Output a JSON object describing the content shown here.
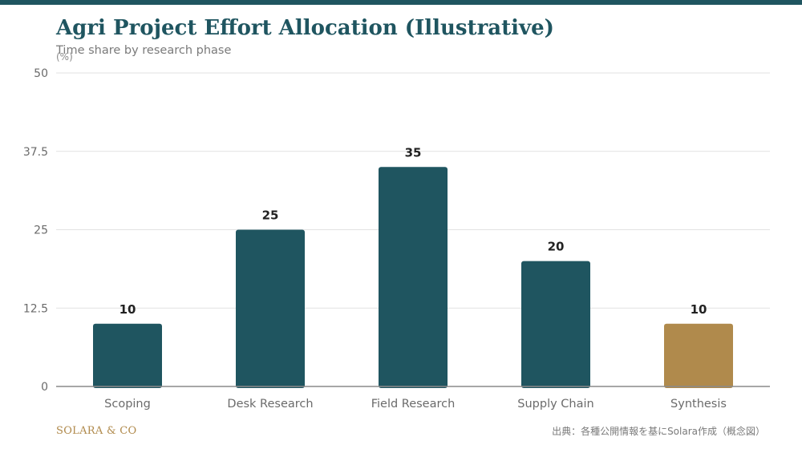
{
  "colors": {
    "primary": "#1f5560",
    "accent": "#b08a4c",
    "grid": "#e2e2e2",
    "axis": "#8a8a8a",
    "tick_text": "#6b6b6b",
    "label_text": "#222222"
  },
  "chart_data": {
    "type": "bar",
    "title": "Agri Project Effort Allocation (Illustrative)",
    "subtitle": "Time share by research phase",
    "unit_label": "(%)",
    "categories": [
      "Scoping",
      "Desk Research",
      "Field Research",
      "Supply Chain",
      "Synthesis"
    ],
    "values": [
      10,
      25,
      35,
      20,
      10
    ],
    "highlight_category": "Synthesis",
    "ylim": [
      0,
      50
    ],
    "yticks": [
      0,
      12.5,
      25,
      37.5,
      50
    ],
    "ytick_labels": [
      "0",
      "12.5",
      "25",
      "37.5",
      "50"
    ],
    "grid": true,
    "data_labels": true
  },
  "footer": {
    "brand": "SOLARA & CO",
    "source": "出典：各種公開情報を基にSolara作成（概念図）"
  }
}
